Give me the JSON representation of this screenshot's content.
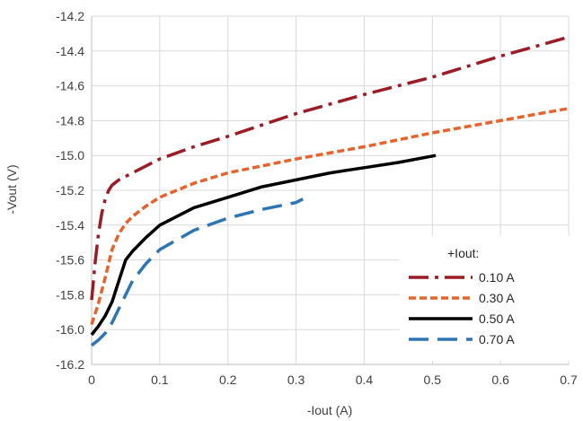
{
  "chart_data": {
    "type": "line",
    "title": "",
    "xlabel": "-Iout (A)",
    "ylabel": "-Vout (V)",
    "xlim": [
      0,
      0.7
    ],
    "ylim": [
      -16.2,
      -14.2
    ],
    "x_ticks": [
      0,
      0.1,
      0.2,
      0.3,
      0.4,
      0.5,
      0.6,
      0.7
    ],
    "x_tick_labels": [
      "0",
      "0.1",
      "0.2",
      "0.3",
      "0.4",
      "0.5",
      "0.6",
      "0.7"
    ],
    "y_ticks": [
      -16.2,
      -16.0,
      -15.8,
      -15.6,
      -15.4,
      -15.2,
      -15.0,
      -14.8,
      -14.6,
      -14.4,
      -14.2
    ],
    "y_tick_labels": [
      "-16.2",
      "-16.0",
      "-15.8",
      "-15.6",
      "-15.4",
      "-15.2",
      "-15.0",
      "-14.8",
      "-14.6",
      "-14.4",
      "-14.2"
    ],
    "grid": true,
    "legend": {
      "title": "+Iout:",
      "position": "bottom-right"
    },
    "series": [
      {
        "name": "0.10 A",
        "color": "#9b1c24",
        "dash": "dash-dot",
        "x": [
          0.0,
          0.005,
          0.01,
          0.015,
          0.02,
          0.025,
          0.03,
          0.04,
          0.05,
          0.06,
          0.08,
          0.1,
          0.15,
          0.2,
          0.3,
          0.4,
          0.5,
          0.6,
          0.7
        ],
        "y": [
          -15.83,
          -15.62,
          -15.45,
          -15.33,
          -15.25,
          -15.2,
          -15.17,
          -15.14,
          -15.12,
          -15.1,
          -15.06,
          -15.02,
          -14.95,
          -14.89,
          -14.76,
          -14.65,
          -14.55,
          -14.43,
          -14.32
        ]
      },
      {
        "name": "0.30 A",
        "color": "#e8632b",
        "dash": "dash",
        "x": [
          0.0,
          0.01,
          0.02,
          0.03,
          0.04,
          0.05,
          0.06,
          0.08,
          0.1,
          0.15,
          0.2,
          0.3,
          0.4,
          0.5,
          0.6,
          0.7
        ],
        "y": [
          -15.97,
          -15.85,
          -15.7,
          -15.54,
          -15.45,
          -15.39,
          -15.35,
          -15.29,
          -15.24,
          -15.16,
          -15.1,
          -15.02,
          -14.95,
          -14.87,
          -14.8,
          -14.73
        ]
      },
      {
        "name": "0.50 A",
        "color": "#000000",
        "dash": "solid",
        "x": [
          0.0,
          0.01,
          0.02,
          0.03,
          0.04,
          0.05,
          0.06,
          0.08,
          0.1,
          0.15,
          0.2,
          0.25,
          0.3,
          0.35,
          0.4,
          0.45,
          0.505
        ],
        "y": [
          -16.03,
          -15.98,
          -15.92,
          -15.84,
          -15.72,
          -15.6,
          -15.55,
          -15.47,
          -15.4,
          -15.3,
          -15.24,
          -15.18,
          -15.14,
          -15.1,
          -15.07,
          -15.04,
          -15.0
        ]
      },
      {
        "name": "0.70 A",
        "color": "#2e75b6",
        "dash": "long-dash",
        "x": [
          0.0,
          0.01,
          0.02,
          0.03,
          0.04,
          0.05,
          0.06,
          0.08,
          0.1,
          0.15,
          0.2,
          0.25,
          0.3,
          0.31
        ],
        "y": [
          -16.09,
          -16.06,
          -16.02,
          -15.96,
          -15.88,
          -15.8,
          -15.72,
          -15.62,
          -15.54,
          -15.43,
          -15.36,
          -15.31,
          -15.27,
          -15.25
        ]
      }
    ]
  }
}
